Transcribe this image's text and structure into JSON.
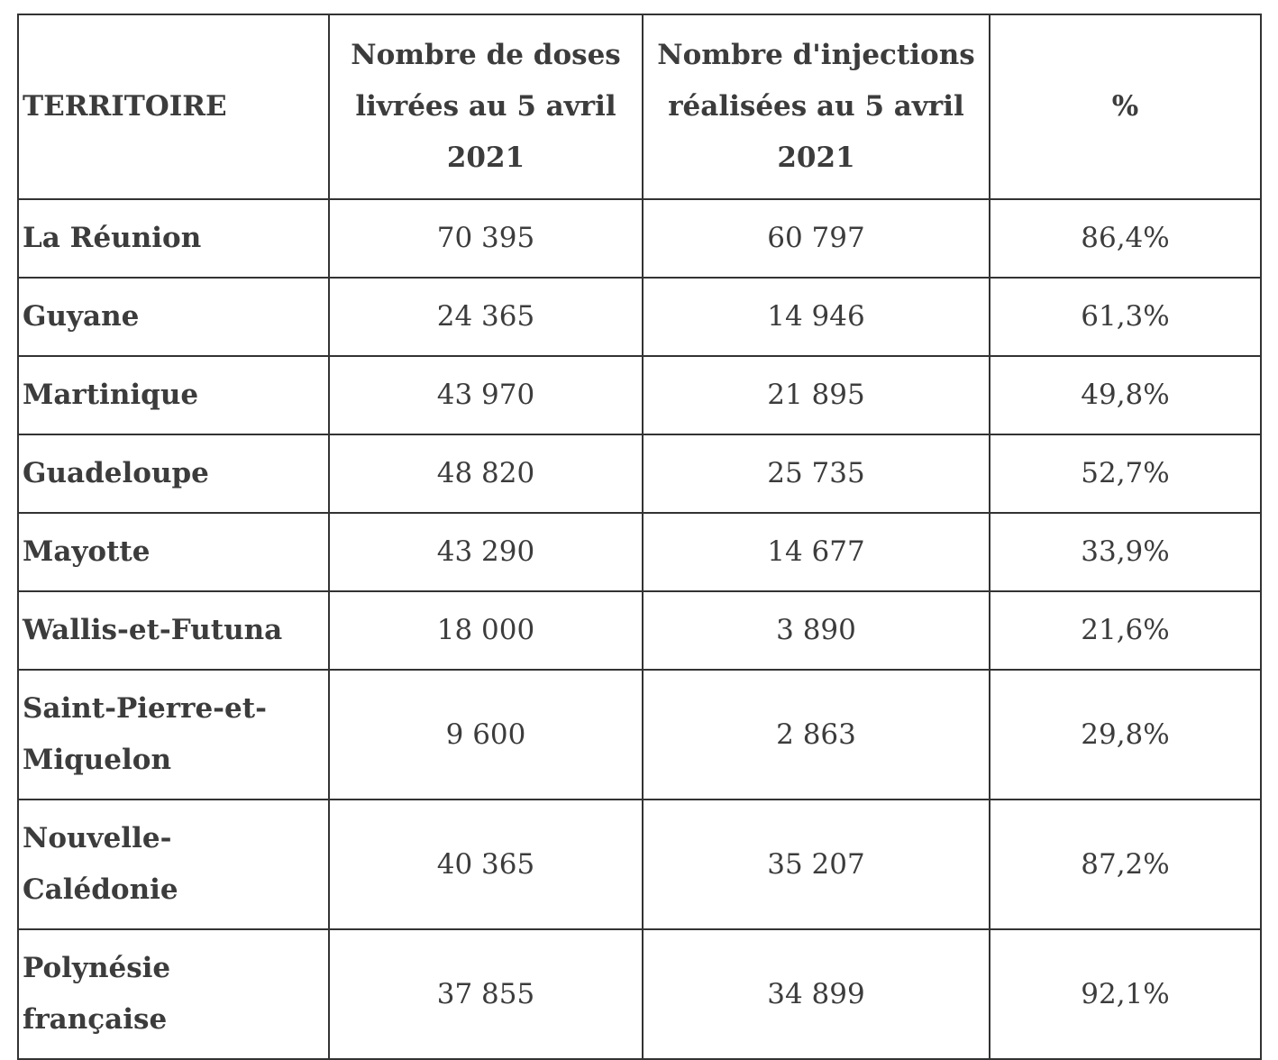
{
  "colors": {
    "background": "#ffffff",
    "text": "#3c3c3c",
    "border": "#333333"
  },
  "table": {
    "columns": [
      {
        "id": "territory",
        "label": "TERRITOIRE"
      },
      {
        "id": "doses",
        "label": "Nombre de doses\nlivrées au 5 avril\n2021"
      },
      {
        "id": "injections",
        "label": "Nombre d'injections\nréalisées au 5 avril\n2021"
      },
      {
        "id": "pct",
        "label": "%"
      }
    ],
    "rows": [
      {
        "territory": "La Réunion",
        "doses": "70 395",
        "injections": "60 797",
        "pct": "86,4%"
      },
      {
        "territory": "Guyane",
        "doses": "24 365",
        "injections": "14 946",
        "pct": "61,3%"
      },
      {
        "territory": "Martinique",
        "doses": "43 970",
        "injections": "21 895",
        "pct": "49,8%"
      },
      {
        "territory": "Guadeloupe",
        "doses": "48 820",
        "injections": "25 735",
        "pct": "52,7%"
      },
      {
        "territory": "Mayotte",
        "doses": "43 290",
        "injections": "14 677",
        "pct": "33,9%"
      },
      {
        "territory": "Wallis-et-Futuna",
        "doses": "18 000",
        "injections": "3 890",
        "pct": "21,6%"
      },
      {
        "territory": "Saint-Pierre-et-Miquelon",
        "doses": "9 600",
        "injections": "2 863",
        "pct": "29,8%"
      },
      {
        "territory": "Nouvelle-Calédonie",
        "doses": "40 365",
        "injections": "35 207",
        "pct": "87,2%"
      },
      {
        "territory": "Polynésie française",
        "doses": "37 855",
        "injections": "34 899",
        "pct": "92,1%"
      }
    ]
  },
  "chart_data": {
    "type": "table",
    "title": "",
    "columns": [
      "TERRITOIRE",
      "Nombre de doses livrées au 5 avril 2021",
      "Nombre d'injections réalisées au 5 avril 2021",
      "%"
    ],
    "categories": [
      "La Réunion",
      "Guyane",
      "Martinique",
      "Guadeloupe",
      "Mayotte",
      "Wallis-et-Futuna",
      "Saint-Pierre-et-Miquelon",
      "Nouvelle-Calédonie",
      "Polynésie française"
    ],
    "series": [
      {
        "name": "Nombre de doses livrées au 5 avril 2021",
        "values": [
          70395,
          24365,
          43970,
          48820,
          43290,
          18000,
          9600,
          40365,
          37855
        ]
      },
      {
        "name": "Nombre d'injections réalisées au 5 avril 2021",
        "values": [
          60797,
          14946,
          21895,
          25735,
          14677,
          3890,
          2863,
          35207,
          34899
        ]
      },
      {
        "name": "%",
        "values": [
          86.4,
          61.3,
          49.8,
          52.7,
          33.9,
          21.6,
          29.8,
          87.2,
          92.1
        ]
      }
    ]
  }
}
